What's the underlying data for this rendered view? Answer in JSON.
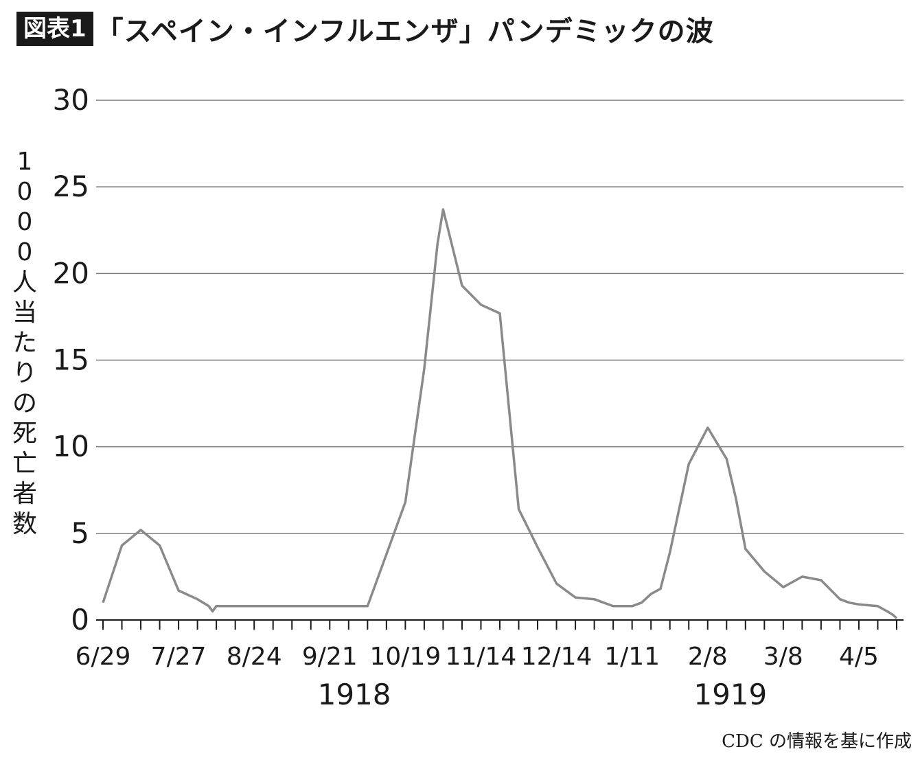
{
  "header": {
    "badge": "図表1",
    "title": "「スペイン・インフルエンザ」パンデミックの波"
  },
  "source_note": "CDC の情報を基に作成",
  "chart_data": {
    "type": "line",
    "title": "「スペイン・インフルエンザ」パンデミックの波",
    "ylabel": "1000人当たりの死亡者数",
    "ylim": [
      0,
      30
    ],
    "yticks": [
      0,
      5,
      10,
      15,
      20,
      25,
      30
    ],
    "grid": true,
    "line_color": "#8a8a8a",
    "x_tick_labels": [
      "6/29",
      "7/27",
      "8/24",
      "9/21",
      "10/19",
      "11/14",
      "12/14",
      "1/11",
      "2/8",
      "3/8",
      "4/5"
    ],
    "x_tick_label_weeks": [
      0,
      4,
      8,
      12,
      16,
      20,
      24,
      28,
      32,
      36,
      40
    ],
    "year_labels": [
      {
        "label": "1918",
        "week": 13.3
      },
      {
        "label": "1919",
        "week": 33.2
      }
    ],
    "week_count": 42,
    "series": [
      {
        "x_weeks": [
          0,
          1,
          2,
          3,
          4,
          5,
          5.6,
          5.8,
          6,
          7,
          8,
          9,
          10,
          11,
          12,
          13,
          14,
          15,
          16,
          17,
          17.7,
          18,
          19,
          20,
          21,
          22,
          23,
          24,
          25,
          26,
          26.5,
          27,
          28,
          28.5,
          29,
          29.5,
          30,
          31,
          32,
          33,
          33.5,
          34,
          35,
          36,
          37,
          38,
          39,
          39.5,
          40,
          41,
          41.5,
          41.8,
          42
        ],
        "values": [
          1,
          4.3,
          5.2,
          4.3,
          1.7,
          1.2,
          0.8,
          0.5,
          0.8,
          0.8,
          0.8,
          0.8,
          0.8,
          0.8,
          0.8,
          0.8,
          0.8,
          3.8,
          6.8,
          14.5,
          21.7,
          23.7,
          19.3,
          18.2,
          17.7,
          6.4,
          4.2,
          2.1,
          1.3,
          1.2,
          1.0,
          0.8,
          0.8,
          1.0,
          1.5,
          1.8,
          3.9,
          9.0,
          11.1,
          9.3,
          7.0,
          4.1,
          2.8,
          1.9,
          2.5,
          2.3,
          1.2,
          1.0,
          0.9,
          0.8,
          0.5,
          0.3,
          0.1
        ]
      }
    ]
  }
}
